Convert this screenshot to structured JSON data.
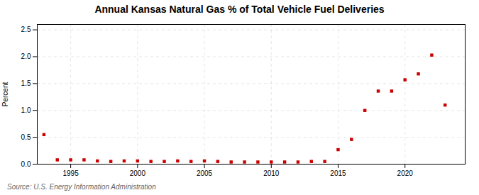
{
  "chart_data": {
    "type": "scatter",
    "title": "Annual Kansas Natural Gas % of Total Vehicle Fuel Deliveries",
    "ylabel": "Percent",
    "annotation": "Source: U.S. Energy Information Administration",
    "x": [
      1993,
      1994,
      1995,
      1996,
      1997,
      1998,
      1999,
      2000,
      2001,
      2002,
      2003,
      2004,
      2005,
      2006,
      2007,
      2008,
      2009,
      2010,
      2011,
      2012,
      2013,
      2014,
      2015,
      2016,
      2017,
      2018,
      2019,
      2020,
      2021,
      2022,
      2023
    ],
    "values": [
      0.55,
      0.08,
      0.08,
      0.08,
      0.06,
      0.05,
      0.06,
      0.06,
      0.05,
      0.05,
      0.06,
      0.05,
      0.06,
      0.05,
      0.04,
      0.04,
      0.04,
      0.04,
      0.04,
      0.04,
      0.05,
      0.05,
      0.27,
      0.46,
      1.0,
      1.36,
      1.36,
      1.57,
      1.68,
      2.03,
      1.1
    ],
    "color": "#cc0000",
    "marker": "square",
    "xlim": [
      1992.5,
      2024.5
    ],
    "xticks": [
      1995,
      2000,
      2005,
      2010,
      2015,
      2020
    ],
    "ylim": [
      0.0,
      2.6
    ],
    "yticks": [
      {
        "value": 0,
        "label": "0.0"
      },
      0.5,
      {
        "value": 1,
        "label": "1.0"
      },
      1.5,
      {
        "value": 2,
        "label": "2.0"
      },
      2.5
    ],
    "grid": true
  }
}
